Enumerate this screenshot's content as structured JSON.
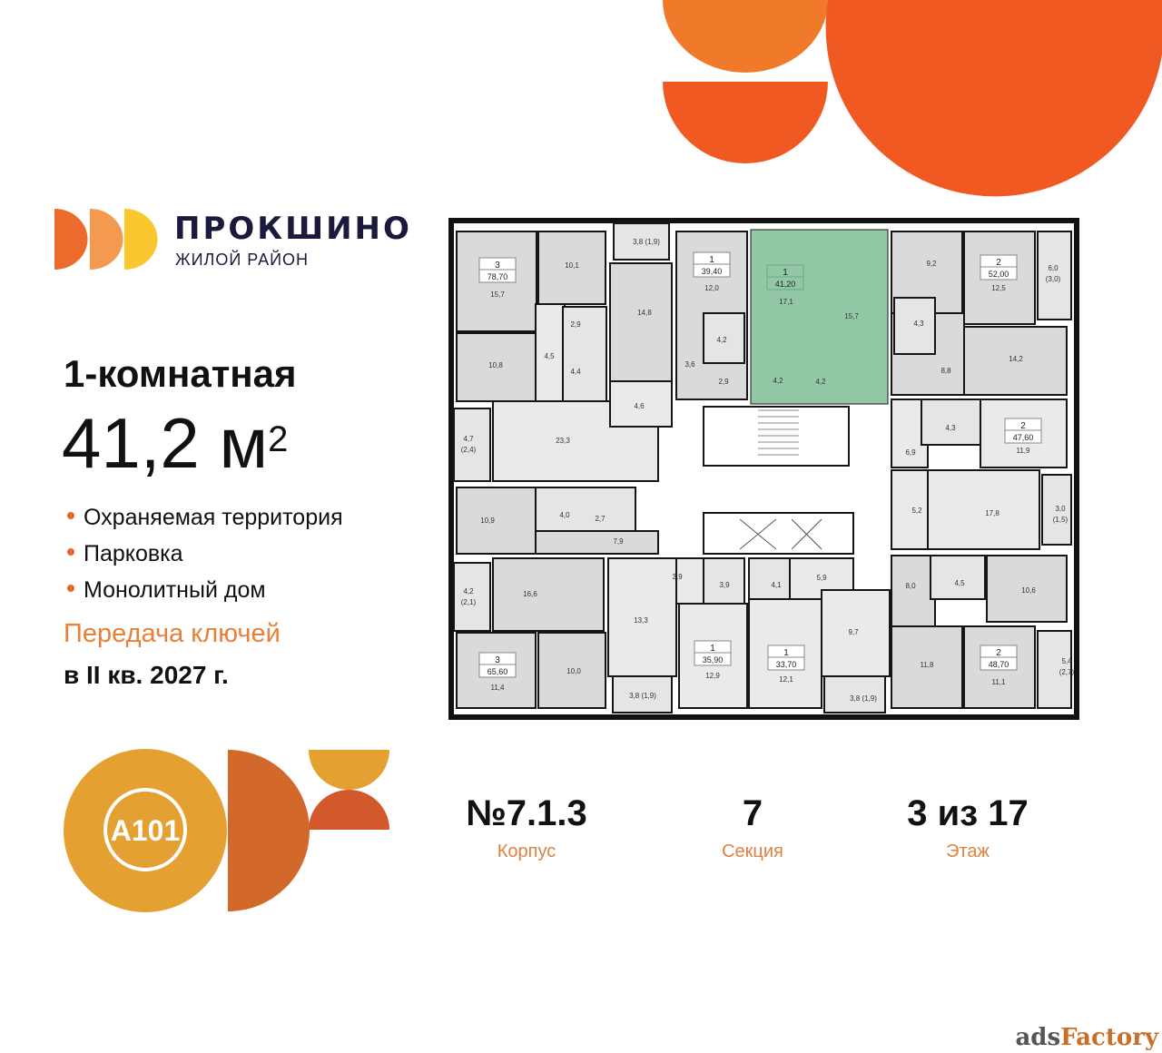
{
  "colors": {
    "accent": "#e8672a",
    "orange_dark": "#f05a22",
    "orange_light": "#f07a2a",
    "gold": "#e4a030",
    "rust": "#d3682b",
    "navy": "#1b1a3c",
    "highlight": "#93c8a6",
    "room": "#d9dadb",
    "corridor": "#e9ebea"
  },
  "brand": {
    "title": "ПРОКШИНО",
    "subtitle": "ЖИЛОЙ РАЙОН",
    "developer_logo_text": "A101"
  },
  "apartment": {
    "type": "1-комнатная",
    "area": "41,2 м",
    "area_sup": "2"
  },
  "features": [
    "Охраняемая территория",
    "Парковка",
    "Монолитный дом"
  ],
  "keys": {
    "line1": "Передача ключей",
    "line2": "в II кв. 2027 г."
  },
  "stats": [
    {
      "value": "№7.1.3",
      "label": "Корпус"
    },
    {
      "value": "7",
      "label": "Секция"
    },
    {
      "value": "3 из 17",
      "label": "Этаж"
    }
  ],
  "floorplan": {
    "highlighted_apartment": "41,20",
    "apartments": [
      {
        "rooms": "3",
        "area": "78,70"
      },
      {
        "rooms": "1",
        "area": "39,40"
      },
      {
        "rooms": "1",
        "area": "41,20"
      },
      {
        "rooms": "2",
        "area": "52,00"
      },
      {
        "rooms": "2",
        "area": "47,60"
      },
      {
        "rooms": "3",
        "area": "65,60"
      },
      {
        "rooms": "1",
        "area": "35,90"
      },
      {
        "rooms": "1",
        "area": "33,70"
      },
      {
        "rooms": "2",
        "area": "48,70"
      }
    ],
    "room_areas": [
      "15,7",
      "10,1",
      "2,9",
      "14,8",
      "12,0",
      "4,2",
      "4,5",
      "10,8",
      "4,4",
      "3,6",
      "2,9",
      "4,6",
      "23,3",
      "4,7",
      "(2,4)",
      "17,1",
      "15,7",
      "4,2",
      "4,2",
      "9,2",
      "12,5",
      "6,0",
      "(3,0)",
      "4,3",
      "8,8",
      "14,2",
      "4,3",
      "6,9",
      "11,9",
      "3,8 (1,9)",
      "10,9",
      "4,0",
      "2,7",
      "7,9",
      "16,6",
      "4,2",
      "(2,1)",
      "3,9",
      "3,9",
      "13,3",
      "11,4",
      "10,0",
      "3,8 (1,9)",
      "12,9",
      "5,2",
      "17,8",
      "3,0",
      "(1,5)",
      "4,1",
      "5,9",
      "8,0",
      "4,5",
      "10,6",
      "9,7",
      "12,1",
      "3,8 (1,9)",
      "11,8",
      "11,1",
      "5,4",
      "(2,7)"
    ]
  },
  "watermark": {
    "part1": "ads",
    "part2": "Factory"
  }
}
